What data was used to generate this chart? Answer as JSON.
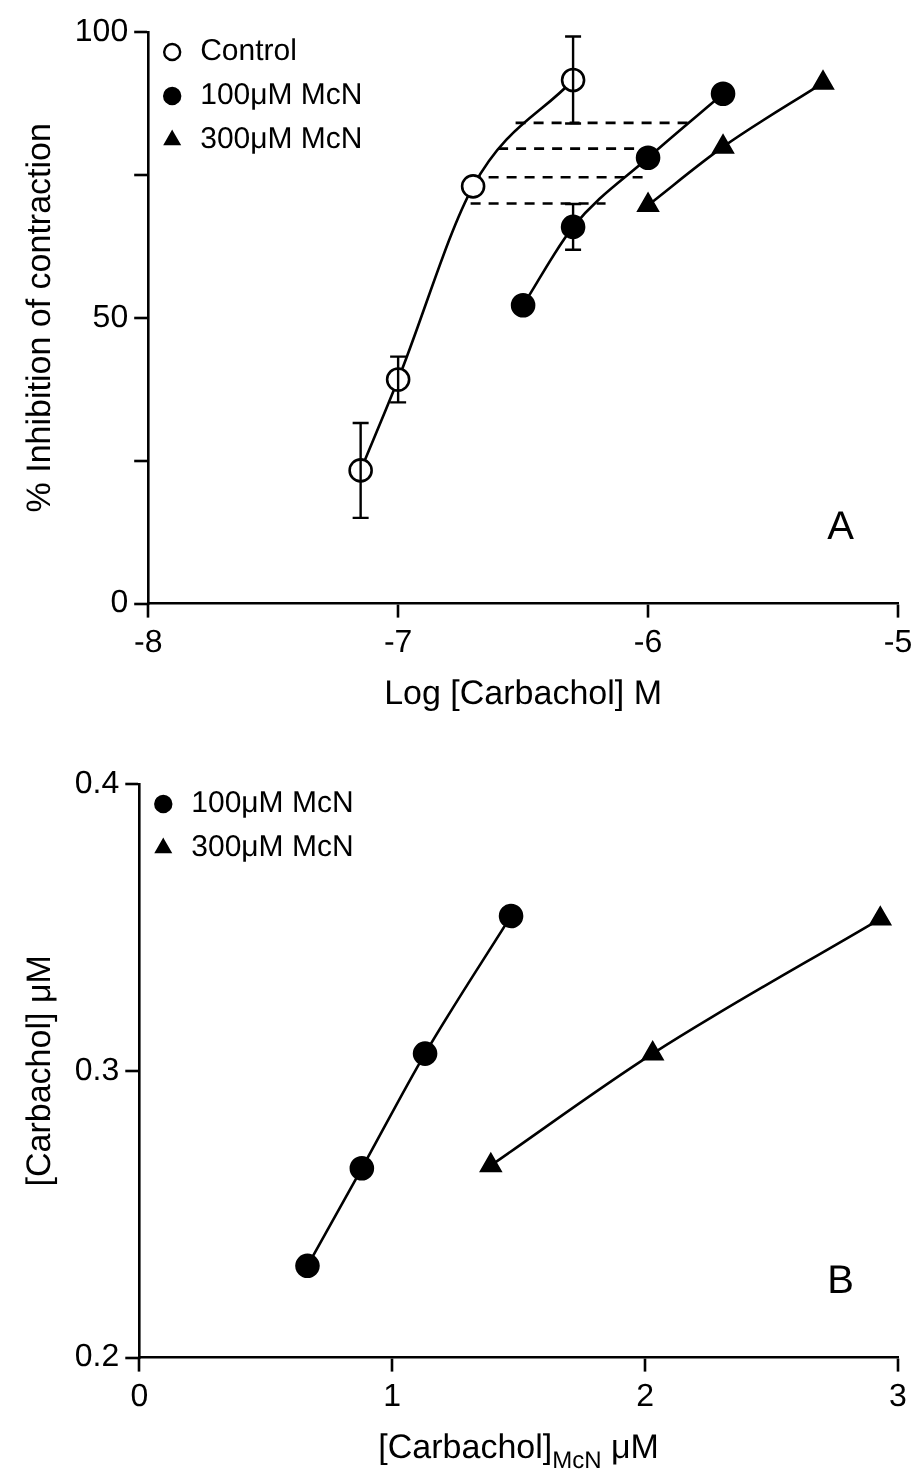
{
  "chart_data": [
    {
      "type": "line",
      "xlabel": "Log [Carbachol] M",
      "ylabel": "% Inhibition of contraction",
      "xlim": [
        -8,
        -5
      ],
      "xticks": [
        -8,
        -7,
        -6,
        -5
      ],
      "ylim": [
        0,
        100
      ],
      "yticks": [
        0,
        {
          "value": 25,
          "label": null
        },
        50,
        {
          "value": 75,
          "label": null
        },
        100
      ],
      "legend": "top left",
      "annotations": [
        "A"
      ],
      "series": [
        {
          "name": "Control",
          "color": "#ffffff",
          "marker": "circle",
          "x": [
            -7.15,
            -7,
            -6.7,
            -6.3
          ],
          "values": [
            23.3,
            39.2,
            73,
            91.6
          ],
          "errors": [
            8.3,
            4,
            null,
            7.6
          ]
        },
        {
          "name": "100μM McN",
          "color": "#000000",
          "marker": "circle",
          "x": [
            -6.5,
            -6.3,
            -6,
            -5.7
          ],
          "values": [
            52.2,
            65.9,
            78,
            89.2
          ],
          "errors": [
            null,
            4,
            null,
            null
          ]
        },
        {
          "name": "300μM McN",
          "color": "#000000",
          "marker": "triangle",
          "x": [
            -6,
            -5.7,
            -5.3
          ],
          "values": [
            69.7,
            79.9,
            91.1
          ]
        },
        {
          "color": "#000000",
          "marker": "none",
          "line_style": "dashed",
          "x": [
            -6.53,
            -5.84
          ],
          "values": [
            84.1,
            84.1
          ]
        },
        {
          "color": "#000000",
          "marker": "none",
          "line_style": "dashed",
          "x": [
            -6.6,
            -6.02
          ],
          "values": [
            79.6,
            79.6
          ]
        },
        {
          "color": "#000000",
          "marker": "none",
          "line_style": "dashed",
          "x": [
            -6.71,
            -6
          ],
          "values": [
            74.6,
            74.6
          ]
        },
        {
          "color": "#000000",
          "marker": "none",
          "line_style": "dashed",
          "x": [
            -6.71,
            -6.17
          ],
          "values": [
            70,
            70
          ]
        }
      ]
    },
    {
      "type": "line",
      "xlabel": "[Carbachol]$_{McN}$ μM",
      "ylabel": "[Carbachol] μM",
      "xlim": [
        0,
        3
      ],
      "xticks": [
        0,
        1,
        2,
        3
      ],
      "ylim": [
        0.2,
        0.4
      ],
      "yticks": [
        0.2,
        0.3,
        0.4
      ],
      "legend": "top left",
      "annotations": [
        "B"
      ],
      "series": [
        {
          "name": "100μM McN",
          "color": "#000000",
          "marker": "circle",
          "x": [
            0.665,
            0.88,
            1.13,
            1.47
          ],
          "values": [
            0.232,
            0.266,
            0.306,
            0.354
          ]
        },
        {
          "name": "300μM McN",
          "color": "#000000",
          "marker": "triangle",
          "x": [
            1.39,
            2.03,
            2.93
          ],
          "values": [
            0.267,
            0.306,
            0.353
          ]
        }
      ]
    }
  ]
}
